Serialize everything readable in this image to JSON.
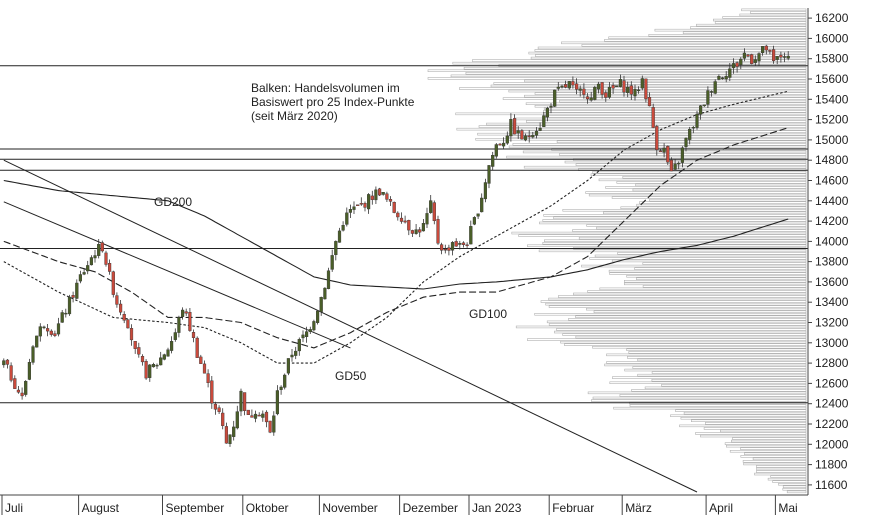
{
  "chart_data": {
    "type": "candlestick",
    "title": "",
    "xlabel": "",
    "ylabel": "",
    "ylim": [
      11500,
      16300
    ],
    "yticks": [
      11600,
      11800,
      12000,
      12200,
      12400,
      12600,
      12800,
      13000,
      13200,
      13400,
      13600,
      13800,
      14000,
      14200,
      14400,
      14600,
      14800,
      15000,
      15200,
      15400,
      15600,
      15800,
      16000,
      16200
    ],
    "months": [
      "Juli",
      "August",
      "September",
      "Oktober",
      "November",
      "Dezember",
      "Jan 2023",
      "Februar",
      "März",
      "April",
      "Mai"
    ],
    "month_start_index": [
      0,
      21,
      44,
      66,
      87,
      109,
      128,
      150,
      170,
      193,
      212
    ],
    "total_days": 216,
    "close_waypoints": [
      [
        0,
        12800
      ],
      [
        3,
        12600
      ],
      [
        5,
        12450
      ],
      [
        8,
        13000
      ],
      [
        11,
        13200
      ],
      [
        14,
        13100
      ],
      [
        18,
        13400
      ],
      [
        21,
        13650
      ],
      [
        25,
        13900
      ],
      [
        27,
        13950
      ],
      [
        29,
        13650
      ],
      [
        31,
        13400
      ],
      [
        34,
        13200
      ],
      [
        36,
        12900
      ],
      [
        39,
        12700
      ],
      [
        42,
        12800
      ],
      [
        45,
        12950
      ],
      [
        47,
        13100
      ],
      [
        49,
        13350
      ],
      [
        51,
        13150
      ],
      [
        53,
        12900
      ],
      [
        55,
        12700
      ],
      [
        57,
        12450
      ],
      [
        59,
        12300
      ],
      [
        61,
        12000
      ],
      [
        63,
        12200
      ],
      [
        65,
        12500
      ],
      [
        67,
        12250
      ],
      [
        69,
        12350
      ],
      [
        71,
        12300
      ],
      [
        73,
        12100
      ],
      [
        75,
        12500
      ],
      [
        77,
        12700
      ],
      [
        79,
        12900
      ],
      [
        81,
        13000
      ],
      [
        83,
        13100
      ],
      [
        85,
        13250
      ],
      [
        87,
        13450
      ],
      [
        89,
        13700
      ],
      [
        91,
        14000
      ],
      [
        93,
        14200
      ],
      [
        95,
        14300
      ],
      [
        98,
        14350
      ],
      [
        101,
        14450
      ],
      [
        103,
        14500
      ],
      [
        105,
        14400
      ],
      [
        107,
        14300
      ],
      [
        109,
        14250
      ],
      [
        111,
        14150
      ],
      [
        113,
        14100
      ],
      [
        115,
        14150
      ],
      [
        117,
        14350
      ],
      [
        119,
        14000
      ],
      [
        121,
        13900
      ],
      [
        123,
        14000
      ],
      [
        125,
        13950
      ],
      [
        127,
        14000
      ],
      [
        129,
        14200
      ],
      [
        131,
        14450
      ],
      [
        133,
        14750
      ],
      [
        135,
        14950
      ],
      [
        137,
        15000
      ],
      [
        139,
        15150
      ],
      [
        141,
        15050
      ],
      [
        143,
        15000
      ],
      [
        145,
        15100
      ],
      [
        147,
        15150
      ],
      [
        149,
        15300
      ],
      [
        151,
        15450
      ],
      [
        153,
        15500
      ],
      [
        155,
        15550
      ],
      [
        157,
        15450
      ],
      [
        159,
        15500
      ],
      [
        161,
        15400
      ],
      [
        163,
        15550
      ],
      [
        165,
        15450
      ],
      [
        167,
        15500
      ],
      [
        169,
        15550
      ],
      [
        171,
        15500
      ],
      [
        173,
        15450
      ],
      [
        175,
        15600
      ],
      [
        177,
        15300
      ],
      [
        179,
        14950
      ],
      [
        181,
        14900
      ],
      [
        183,
        14650
      ],
      [
        185,
        14800
      ],
      [
        187,
        15000
      ],
      [
        189,
        15150
      ],
      [
        191,
        15300
      ],
      [
        193,
        15450
      ],
      [
        195,
        15600
      ],
      [
        197,
        15650
      ],
      [
        199,
        15700
      ],
      [
        201,
        15750
      ],
      [
        203,
        15850
      ],
      [
        205,
        15800
      ],
      [
        207,
        15850
      ],
      [
        209,
        15900
      ],
      [
        211,
        15750
      ],
      [
        212,
        15800
      ],
      [
        214,
        15850
      ],
      [
        215,
        15780
      ]
    ],
    "gd50_waypoints": [
      [
        0,
        13800
      ],
      [
        15,
        13500
      ],
      [
        30,
        13250
      ],
      [
        45,
        13200
      ],
      [
        55,
        13150
      ],
      [
        65,
        13000
      ],
      [
        75,
        12800
      ],
      [
        85,
        12800
      ],
      [
        95,
        13000
      ],
      [
        105,
        13250
      ],
      [
        115,
        13600
      ],
      [
        125,
        13850
      ],
      [
        135,
        14050
      ],
      [
        150,
        14350
      ],
      [
        160,
        14600
      ],
      [
        170,
        14900
      ],
      [
        180,
        15100
      ],
      [
        190,
        15250
      ],
      [
        200,
        15350
      ],
      [
        215,
        15480
      ]
    ],
    "gd100_waypoints": [
      [
        0,
        14000
      ],
      [
        15,
        13800
      ],
      [
        25,
        13700
      ],
      [
        35,
        13500
      ],
      [
        45,
        13250
      ],
      [
        55,
        13250
      ],
      [
        65,
        13200
      ],
      [
        75,
        13050
      ],
      [
        85,
        12950
      ],
      [
        95,
        13100
      ],
      [
        105,
        13300
      ],
      [
        115,
        13450
      ],
      [
        125,
        13500
      ],
      [
        135,
        13500
      ],
      [
        150,
        13650
      ],
      [
        160,
        13850
      ],
      [
        170,
        14200
      ],
      [
        180,
        14550
      ],
      [
        190,
        14800
      ],
      [
        200,
        14950
      ],
      [
        215,
        15120
      ]
    ],
    "gd200_waypoints": [
      [
        0,
        14600
      ],
      [
        15,
        14500
      ],
      [
        30,
        14450
      ],
      [
        45,
        14400
      ],
      [
        55,
        14250
      ],
      [
        65,
        14050
      ],
      [
        75,
        13850
      ],
      [
        85,
        13650
      ],
      [
        95,
        13570
      ],
      [
        105,
        13550
      ],
      [
        115,
        13530
      ],
      [
        125,
        13580
      ],
      [
        135,
        13600
      ],
      [
        150,
        13650
      ],
      [
        160,
        13720
      ],
      [
        170,
        13820
      ],
      [
        180,
        13900
      ],
      [
        190,
        13960
      ],
      [
        200,
        14050
      ],
      [
        215,
        14220
      ]
    ],
    "ma_labels": {
      "gd200": "GD200",
      "gd100": "GD100",
      "gd50": "GD50"
    },
    "horizontal_lines": [
      15730,
      14910,
      14810,
      14700,
      13930,
      12410
    ],
    "trendlines": [
      {
        "from": [
          0,
          14800
        ],
        "to": [
          190,
          11530
        ]
      },
      {
        "from": [
          0,
          14390
        ],
        "to": [
          95,
          12950
        ]
      }
    ],
    "volume_profile": {
      "label": "Balken: Handelsvolumen im Basiswert pro 25 Index-Punkte (seit März 2020)",
      "bin_size": 25,
      "anchor_price": [
        11525,
        11700,
        11900,
        12100,
        12300,
        12450,
        12550,
        12700,
        12900,
        13050,
        13200,
        13350,
        13450,
        13550,
        13700,
        13900,
        14000,
        14200,
        14400,
        14600,
        14800,
        14950,
        15100,
        15300,
        15450,
        15550,
        15650,
        15800,
        15950,
        16100,
        16250
      ],
      "anchor_volume": [
        0.05,
        0.12,
        0.18,
        0.25,
        0.35,
        0.6,
        0.45,
        0.45,
        0.55,
        0.65,
        0.7,
        0.62,
        0.58,
        0.52,
        0.48,
        0.6,
        0.7,
        0.65,
        0.5,
        0.55,
        0.75,
        0.8,
        0.8,
        0.82,
        0.75,
        0.85,
        0.9,
        0.75,
        0.55,
        0.3,
        0.15
      ]
    },
    "colors": {
      "candle_up": "#4a5e28",
      "candle_down": "#c94a3c",
      "wick": "#333333",
      "volume_bars": "#b0b0b0",
      "lines": "#222222"
    }
  }
}
